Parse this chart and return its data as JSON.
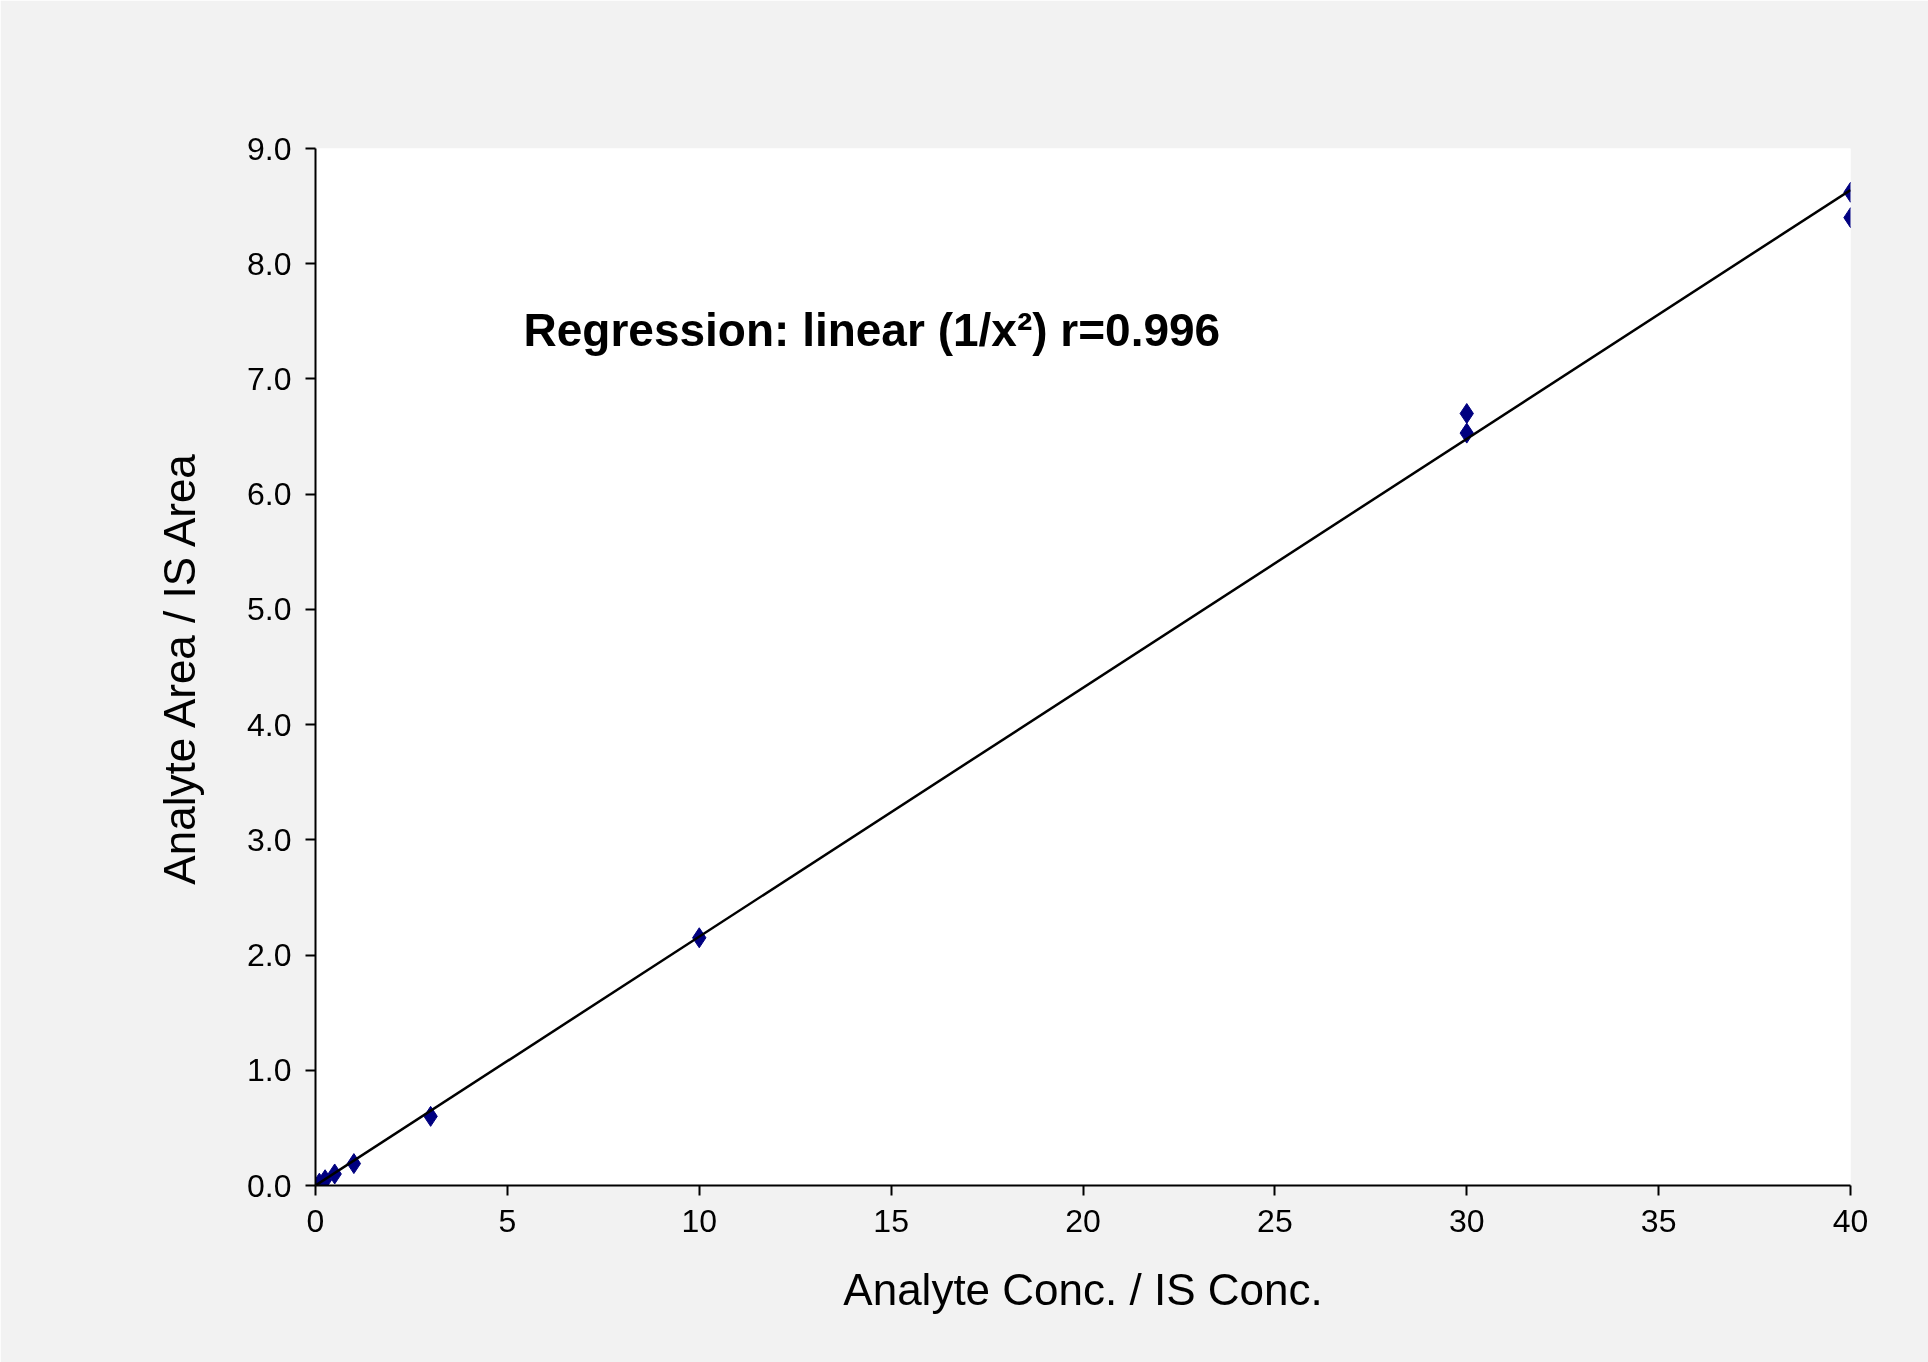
{
  "chart_data": {
    "type": "scatter",
    "xlabel": "Analyte Conc. / IS Conc.",
    "ylabel": "Analyte Area / IS Area",
    "annotations": [
      "Regression: linear (1/x²) r=0.996"
    ],
    "xlim": [
      0,
      40
    ],
    "ylim": [
      0,
      9
    ],
    "xticks": [
      0,
      5,
      10,
      15,
      20,
      25,
      30,
      35,
      40
    ],
    "yticks": [
      {
        "value": 0,
        "label": "0.0"
      },
      {
        "value": 1,
        "label": "1.0"
      },
      {
        "value": 2,
        "label": "2.0"
      },
      {
        "value": 3,
        "label": "3.0"
      },
      {
        "value": 4,
        "label": "4.0"
      },
      {
        "value": 5,
        "label": "5.0"
      },
      {
        "value": 6,
        "label": "6.0"
      },
      {
        "value": 7,
        "label": "7.0"
      },
      {
        "value": 8,
        "label": "8.0"
      },
      {
        "value": 9,
        "label": "9.0"
      }
    ],
    "series": [
      {
        "color": "#000080",
        "marker": "diamond",
        "x": [
          0.1,
          0.25,
          0.5,
          1,
          3,
          10,
          30,
          30,
          40,
          40
        ],
        "values": [
          0.02,
          0.05,
          0.1,
          0.19,
          0.6,
          2.15,
          6.7,
          6.53,
          8.62,
          8.4
        ]
      },
      {
        "type": "line",
        "color": "#000000",
        "x": [
          0,
          40
        ],
        "values": [
          0,
          8.64
        ]
      }
    ]
  }
}
